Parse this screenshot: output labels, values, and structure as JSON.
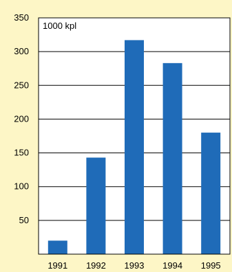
{
  "colors": {
    "background": "#fdf6c6",
    "plot_background": "#ffffff",
    "bar": "#1f6bb8",
    "axis": "#000000",
    "grid": "#000000"
  },
  "chart_data": {
    "type": "bar",
    "unit_label": "1000 kpl",
    "categories": [
      "1991",
      "1992",
      "1993",
      "1994",
      "1995"
    ],
    "values": [
      20,
      143,
      317,
      283,
      180
    ],
    "ylim": [
      0,
      350
    ],
    "y_ticks": [
      50,
      100,
      150,
      200,
      250,
      300,
      350
    ],
    "grid": true,
    "title": "",
    "xlabel": "",
    "ylabel": ""
  }
}
